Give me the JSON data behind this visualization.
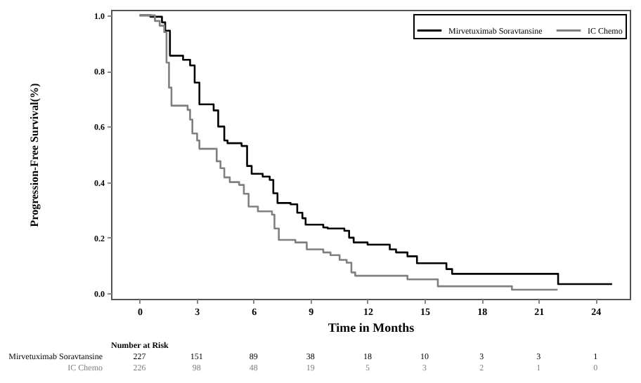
{
  "chart_data": {
    "type": "step",
    "xlabel": "Time in Months",
    "ylabel": "Progression-Free Survival(%)",
    "xlim": [
      -1.5,
      25.8
    ],
    "xticks": [
      0,
      3,
      6,
      9,
      12,
      15,
      18,
      21,
      24
    ],
    "ylim": [
      -0.02,
      1.02
    ],
    "yticks": [
      {
        "value": 0,
        "label": "0.0"
      },
      {
        "value": 0.2,
        "label": "0.2"
      },
      {
        "value": 0.4,
        "label": "0.4"
      },
      {
        "value": 0.6,
        "label": "0.6"
      },
      {
        "value": 0.8,
        "label": "0.8"
      },
      {
        "value": 1,
        "label": "1.0"
      }
    ],
    "legend": "top right",
    "grid": false,
    "series": [
      {
        "name": "Mirvetuximab Soravtansine",
        "color": "#000000",
        "x": [
          0,
          0.57,
          1.18,
          1.35,
          1.6,
          2.29,
          2.66,
          2.9,
          3.15,
          3.9,
          4.14,
          4.46,
          4.63,
          5.37,
          5.66,
          5.9,
          6.48,
          6.85,
          7.04,
          7.26,
          7.95,
          8.3,
          8.57,
          8.74,
          9.67,
          9.9,
          10.78,
          11.03,
          11.27,
          12.0,
          13.17,
          13.5,
          14.1,
          14.6,
          16.15,
          16.45,
          22.03,
          24.87
        ],
        "values": [
          1,
          0.995,
          0.975,
          0.945,
          0.855,
          0.84,
          0.82,
          0.758,
          0.68,
          0.658,
          0.6,
          0.55,
          0.54,
          0.53,
          0.458,
          0.43,
          0.42,
          0.408,
          0.36,
          0.325,
          0.32,
          0.29,
          0.27,
          0.247,
          0.237,
          0.233,
          0.225,
          0.2,
          0.183,
          0.175,
          0.158,
          0.147,
          0.133,
          0.108,
          0.087,
          0.07,
          0.033,
          0.033
        ]
      },
      {
        "name": "IC Chemo",
        "color": "#808080",
        "x": [
          0,
          0.81,
          1.06,
          1.3,
          1.42,
          1.55,
          1.68,
          2.53,
          2.66,
          2.78,
          3.03,
          3.15,
          4.06,
          4.26,
          4.46,
          4.75,
          5.24,
          5.49,
          5.74,
          6.23,
          6.97,
          7.1,
          7.33,
          8.2,
          8.8,
          9.67,
          10.05,
          10.53,
          10.9,
          11.15,
          11.35,
          14.1,
          15.7,
          19.6,
          22.0
        ],
        "values": [
          1,
          0.98,
          0.963,
          0.94,
          0.83,
          0.74,
          0.675,
          0.66,
          0.625,
          0.575,
          0.55,
          0.52,
          0.475,
          0.45,
          0.417,
          0.4,
          0.39,
          0.358,
          0.312,
          0.295,
          0.283,
          0.233,
          0.192,
          0.183,
          0.158,
          0.147,
          0.137,
          0.12,
          0.11,
          0.075,
          0.063,
          0.05,
          0.025,
          0.013,
          0.013
        ]
      }
    ],
    "annotations": [
      "Number at Risk",
      "227",
      "151",
      "89",
      "38",
      "18",
      "10",
      "3",
      "3",
      "1",
      "226",
      "98",
      "48",
      "19",
      "5",
      "3",
      "2",
      "1",
      "0"
    ]
  }
}
